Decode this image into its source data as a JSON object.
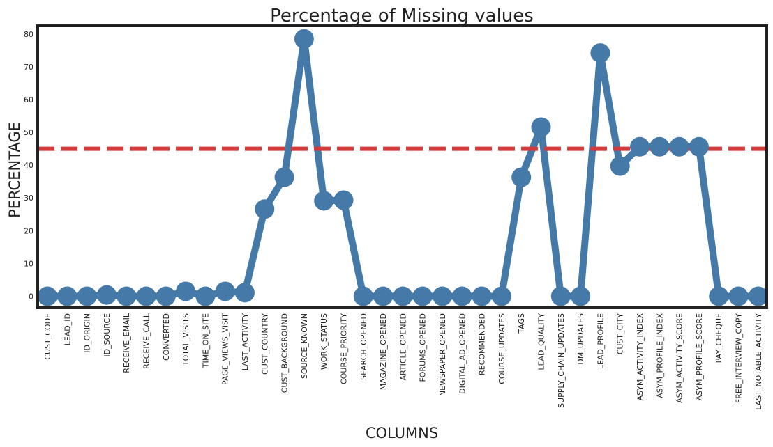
{
  "chart_data": {
    "type": "line",
    "title": "Percentage of Missing values",
    "xlabel": "COLUMNS",
    "ylabel": "PERCENTAGE",
    "ylim": [
      -3.5,
      82.5
    ],
    "yticks": [
      0,
      10,
      20,
      30,
      40,
      50,
      60,
      70,
      80
    ],
    "grid": false,
    "threshold": 45,
    "colors": {
      "series": "#4479a8",
      "threshold": "#d43a3a",
      "frame": "#222222"
    },
    "categories": [
      "CUST_CODE",
      "LEAD_ID",
      "ID_ORIGIN",
      "ID_SOURCE",
      "RECEIVE_EMAIL",
      "RECEIVE_CALL",
      "CONVERTED",
      "TOTAL_VISITS",
      "TIME_ON_SITE",
      "PAGE_VIEWS_VISIT",
      "LAST_ACTIVITY",
      "CUST_COUNTRY",
      "CUST_BACKGROUND",
      "SOURCE_KNOWN",
      "WORK_STATUS",
      "COURSE_PRIORITY",
      "SEARCH_OPENED",
      "MAGAZINE_OPENED",
      "ARTICLE_OPENED",
      "FORUMS_OPENED",
      "NEWSPAPER_OPENED",
      "DIGITAL_AD_OPENED",
      "RECOMMENDED",
      "COURSE_UPDATES",
      "TAGS",
      "LEAD_QUALITY",
      "SUPPLY_CHAIN_UPDATES",
      "DM_UPDATES",
      "LEAD_PROFILE",
      "CUST_CITY",
      "ASYM_ACTIVITY_INDEX",
      "ASYM_PROFILE_INDEX",
      "ASYM_ACTIVITY_SCORE",
      "ASYM_PROFILE_SCORE",
      "PAY_CHEQUE",
      "FREE_INTERVIEW_COPY",
      "LAST_NOTABLE_ACTIVITY"
    ],
    "values": [
      0,
      0,
      0,
      0.4,
      0,
      0,
      0,
      1.5,
      0,
      1.5,
      1.1,
      26.6,
      36.3,
      78.5,
      29.1,
      29.3,
      0,
      0,
      0,
      0,
      0,
      0,
      0,
      0,
      36.3,
      51.6,
      0,
      0,
      74.2,
      39.7,
      45.6,
      45.6,
      45.6,
      45.6,
      0,
      0,
      0
    ]
  }
}
